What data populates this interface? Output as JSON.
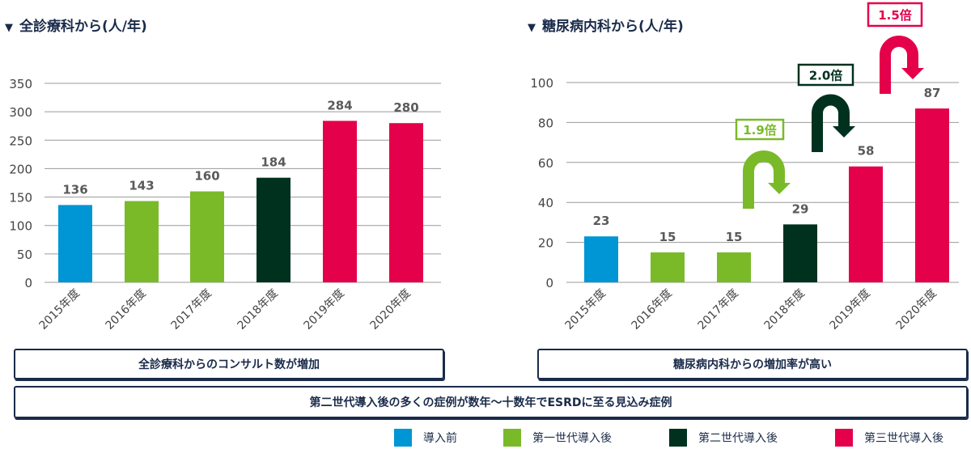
{
  "colors": {
    "before": "#0095d4",
    "gen1": "#7aba29",
    "gen2": "#00311f",
    "gen3": "#e4004a",
    "axis_text": "#444444",
    "value_text": "#5a5a5a",
    "grid": "#9a9a9a"
  },
  "chart_data": [
    {
      "type": "bar",
      "title": "全診療科から(人/年)",
      "categories": [
        "2015年度",
        "2016年度",
        "2017年度",
        "2018年度",
        "2019年度",
        "2020年度"
      ],
      "values": [
        136,
        143,
        160,
        184,
        284,
        280
      ],
      "groups": [
        "before",
        "gen1",
        "gen1",
        "gen2",
        "gen3",
        "gen3"
      ],
      "yticks": [
        0,
        50,
        100,
        150,
        200,
        250,
        300,
        350
      ],
      "ylim": [
        0,
        350
      ],
      "grid": true
    },
    {
      "type": "bar",
      "title": "糖尿病内科から(人/年)",
      "categories": [
        "2015年度",
        "2016年度",
        "2017年度",
        "2018年度",
        "2019年度",
        "2020年度"
      ],
      "values": [
        23,
        15,
        15,
        29,
        58,
        87
      ],
      "groups": [
        "before",
        "gen1",
        "gen1",
        "gen2",
        "gen3",
        "gen3"
      ],
      "yticks": [
        0,
        20,
        40,
        60,
        80,
        100
      ],
      "ylim": [
        0,
        100
      ],
      "grid": true,
      "annotations": [
        {
          "label": "1.9倍",
          "group": "gen1"
        },
        {
          "label": "2.0倍",
          "group": "gen2"
        },
        {
          "label": "1.5倍",
          "group": "gen3"
        }
      ]
    }
  ],
  "notes": {
    "left": "全診療科からのコンサルト数が増加",
    "right": "糖尿病内科からの増加率が高い",
    "bottom": "第二世代導入後の多くの症例が数年〜十数年でESRDに至る見込み症例"
  },
  "legend": [
    {
      "label": "導入前",
      "group": "before"
    },
    {
      "label": "第一世代導入後",
      "group": "gen1"
    },
    {
      "label": "第二世代導入後",
      "group": "gen2"
    },
    {
      "label": "第三世代導入後",
      "group": "gen3"
    }
  ]
}
